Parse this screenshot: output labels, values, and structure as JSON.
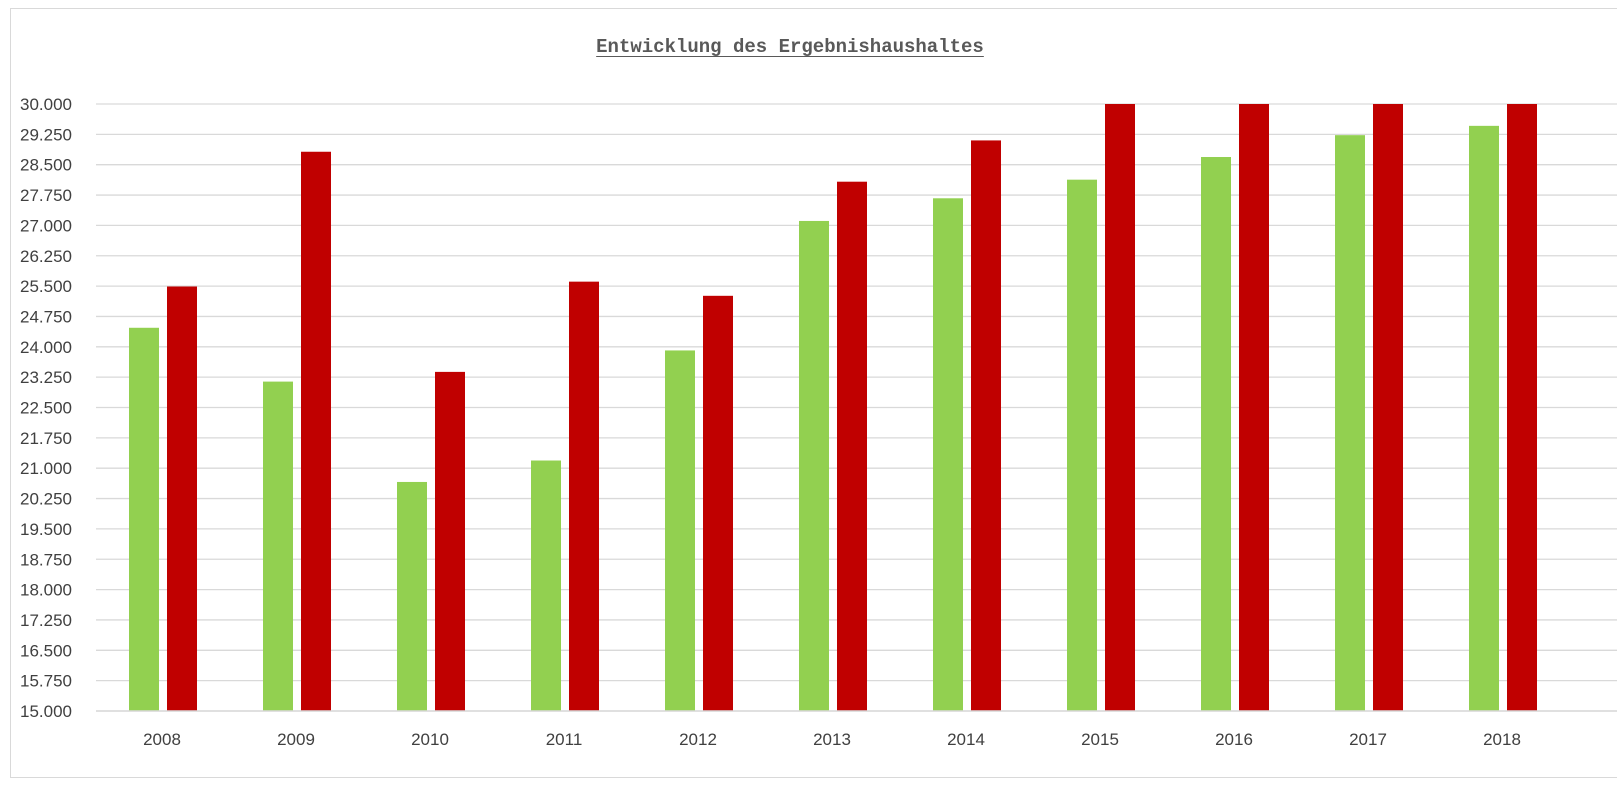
{
  "chart_data": {
    "type": "bar",
    "title": "Entwicklung des Ergebnishaushaltes",
    "xlabel": "",
    "ylabel": "",
    "ylim": [
      15000,
      30000
    ],
    "y_tick_values": [
      15000,
      15750,
      16500,
      17250,
      18000,
      18750,
      19500,
      20250,
      21000,
      21750,
      22500,
      23250,
      24000,
      24750,
      25500,
      26250,
      27000,
      27750,
      28500,
      29250,
      30000
    ],
    "y_tick_labels": [
      "15.000",
      "15.750",
      "16.500",
      "17.250",
      "18.000",
      "18.750",
      "19.500",
      "20.250",
      "21.000",
      "21.750",
      "22.500",
      "23.250",
      "24.000",
      "24.750",
      "25.500",
      "26.250",
      "27.000",
      "27.750",
      "28.500",
      "29.250",
      "30.000"
    ],
    "grid": true,
    "legend": "none",
    "categories": [
      "2008",
      "2009",
      "2010",
      "2011",
      "2012",
      "2013",
      "2014",
      "2015",
      "2016",
      "2017",
      "2018"
    ],
    "series": [
      {
        "color": "#92d050",
        "values": [
          24470,
          23140,
          20660,
          21190,
          23910,
          27110,
          27670,
          28130,
          28690,
          29230,
          29460
        ]
      },
      {
        "color": "#c00000",
        "values": [
          25490,
          28820,
          23380,
          25610,
          25260,
          28080,
          29100,
          30000,
          30000,
          30000,
          30000
        ]
      }
    ]
  }
}
